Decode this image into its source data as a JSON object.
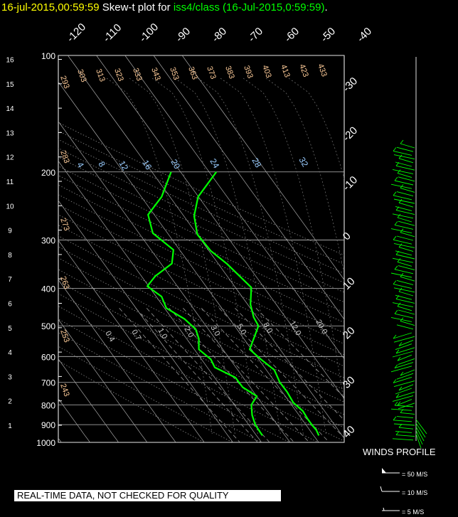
{
  "header": {
    "datetime": "16-jul-2015,00:59:59",
    "prefix": "Skew-t plot for",
    "station": "iss4/class",
    "suffix": "(16-Jul-2015,0:59:59)",
    "end": "."
  },
  "colors": {
    "background": "#000000",
    "grid": "#ffffff",
    "sounding": "#00ff00",
    "title_date": "#ffff00",
    "theta_label": "#ffcc99",
    "mixing_label": "#99ccff"
  },
  "chart_data": {
    "type": "line",
    "title": "Skew-t plot for iss4/class (16-Jul-2015,0:59:59)",
    "pressure_levels": [
      "100",
      "200",
      "300",
      "400",
      "500",
      "600",
      "700",
      "800",
      "900",
      "1000"
    ],
    "height_ticks": [
      "1",
      "2",
      "3",
      "4",
      "5",
      "6",
      "7",
      "8",
      "9",
      "10",
      "11",
      "12",
      "13",
      "14",
      "15",
      "16"
    ],
    "temp_labels_top": [
      "-120",
      "-110",
      "-100",
      "-90",
      "-80",
      "-70",
      "-60",
      "-50",
      "-40"
    ],
    "temp_labels_right": [
      "-30",
      "-20",
      "-10",
      "0",
      "10",
      "20",
      "30",
      "40"
    ],
    "theta_labels_top": [
      "303",
      "313",
      "323",
      "333",
      "343",
      "353",
      "363",
      "373",
      "383",
      "393",
      "403",
      "413",
      "423",
      "433"
    ],
    "theta_labels_left": [
      "293",
      "283",
      "273",
      "263",
      "253",
      "243"
    ],
    "thetae_labels": [
      "4",
      "8",
      "12",
      "16",
      "20",
      "24",
      "28",
      "32"
    ],
    "mixing_labels": [
      "0.4",
      "0.7",
      "1.0",
      "2.0",
      "3.0",
      "5.0",
      "8.0",
      "12.0",
      "20.0"
    ],
    "series": [
      {
        "key": "temperature",
        "points": [
          [
            200,
            19.9
          ],
          [
            232,
            17.6
          ],
          [
            260,
            17.1
          ],
          [
            290,
            17.5
          ],
          [
            320,
            19.2
          ],
          [
            345,
            21.2
          ],
          [
            368,
            22.6
          ],
          [
            398,
            24.3
          ],
          [
            440,
            24.2
          ],
          [
            475,
            24.6
          ],
          [
            500,
            25.2
          ],
          [
            540,
            24.6
          ],
          [
            575,
            24.1
          ],
          [
            610,
            25.5
          ],
          [
            650,
            27.2
          ],
          [
            700,
            27.9
          ],
          [
            740,
            28.8
          ],
          [
            790,
            29.6
          ],
          [
            830,
            30.8
          ],
          [
            870,
            31.4
          ],
          [
            905,
            32.0
          ],
          [
            930,
            32.5
          ],
          [
            960,
            32.8
          ]
        ]
      },
      {
        "key": "dewpoint",
        "points": [
          [
            200,
            14.2
          ],
          [
            232,
            13.0
          ],
          [
            258,
            11.3
          ],
          [
            288,
            11.9
          ],
          [
            318,
            14.5
          ],
          [
            345,
            14.3
          ],
          [
            372,
            12.2
          ],
          [
            395,
            11.2
          ],
          [
            420,
            13.0
          ],
          [
            450,
            13.6
          ],
          [
            480,
            15.9
          ],
          [
            510,
            17.3
          ],
          [
            540,
            17.7
          ],
          [
            575,
            17.7
          ],
          [
            610,
            19.2
          ],
          [
            640,
            19.7
          ],
          [
            680,
            22.3
          ],
          [
            720,
            23.2
          ],
          [
            760,
            25.0
          ],
          [
            800,
            24.3
          ],
          [
            850,
            24.4
          ],
          [
            900,
            24.8
          ],
          [
            940,
            25.4
          ],
          [
            960,
            25.7
          ]
        ]
      }
    ]
  },
  "winds": {
    "title": "WINDS PROFILE",
    "key": [
      "= 50 M/S",
      "= 10 M/S",
      "= 5 M/S"
    ]
  },
  "disclaimer": "REAL-TIME DATA, NOT CHECKED FOR QUALITY"
}
